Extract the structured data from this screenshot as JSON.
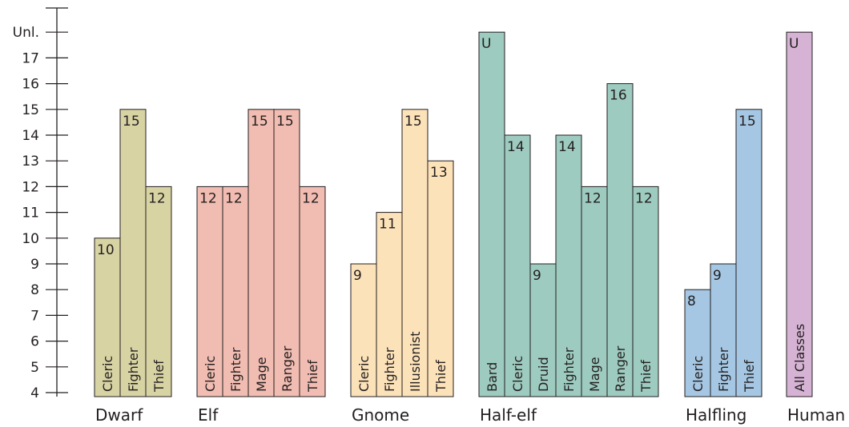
{
  "chart_data": {
    "type": "bar",
    "y_axis": {
      "min": 4,
      "max": 18,
      "ticks": [
        "4",
        "5",
        "6",
        "7",
        "8",
        "9",
        "10",
        "11",
        "12",
        "13",
        "14",
        "15",
        "16",
        "17",
        "Unl."
      ],
      "unlimited_label": "Unl."
    },
    "groups": [
      {
        "name": "Dwarf",
        "color": "#d8d3a3",
        "bars": [
          {
            "label": "Cleric",
            "value": 10,
            "value_label": "10"
          },
          {
            "label": "Fighter",
            "value": 15,
            "value_label": "15"
          },
          {
            "label": "Thief",
            "value": 12,
            "value_label": "12"
          }
        ]
      },
      {
        "name": "Elf",
        "color": "#f1bcb1",
        "bars": [
          {
            "label": "Cleric",
            "value": 12,
            "value_label": "12"
          },
          {
            "label": "Fighter",
            "value": 12,
            "value_label": "12"
          },
          {
            "label": "Mage",
            "value": 15,
            "value_label": "15"
          },
          {
            "label": "Ranger",
            "value": 15,
            "value_label": "15"
          },
          {
            "label": "Thief",
            "value": 12,
            "value_label": "12"
          }
        ]
      },
      {
        "name": "Gnome",
        "color": "#fce2b9",
        "bars": [
          {
            "label": "Cleric",
            "value": 9,
            "value_label": "9"
          },
          {
            "label": "Fighter",
            "value": 11,
            "value_label": "11"
          },
          {
            "label": "Illusionist",
            "value": 15,
            "value_label": "15"
          },
          {
            "label": "Thief",
            "value": 13,
            "value_label": "13"
          }
        ]
      },
      {
        "name": "Half-elf",
        "color": "#9ecbbf",
        "bars": [
          {
            "label": "Bard",
            "value": 18,
            "value_label": "U"
          },
          {
            "label": "Cleric",
            "value": 14,
            "value_label": "14"
          },
          {
            "label": "Druid",
            "value": 9,
            "value_label": "9"
          },
          {
            "label": "Fighter",
            "value": 14,
            "value_label": "14"
          },
          {
            "label": "Mage",
            "value": 12,
            "value_label": "12"
          },
          {
            "label": "Ranger",
            "value": 16,
            "value_label": "16"
          },
          {
            "label": "Thief",
            "value": 12,
            "value_label": "12"
          }
        ]
      },
      {
        "name": "Halfling",
        "color": "#a5c7e3",
        "bars": [
          {
            "label": "Cleric",
            "value": 8,
            "value_label": "8"
          },
          {
            "label": "Fighter",
            "value": 9,
            "value_label": "9"
          },
          {
            "label": "Thief",
            "value": 15,
            "value_label": "15"
          }
        ]
      },
      {
        "name": "Human",
        "color": "#d6b3d4",
        "bars": [
          {
            "label": "All Classes",
            "value": 18,
            "value_label": "U"
          }
        ]
      }
    ]
  }
}
